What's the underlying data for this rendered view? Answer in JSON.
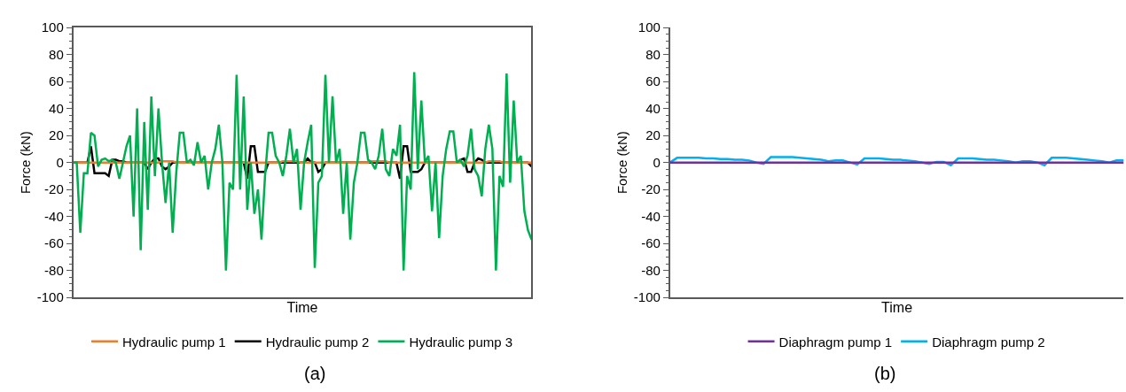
{
  "chart_data": [
    {
      "type": "line",
      "xlabel": "Time",
      "ylabel": "Force (kN)",
      "ylim": [
        -100,
        100
      ],
      "yticks": [
        -100,
        -80,
        -60,
        -40,
        -20,
        0,
        20,
        40,
        60,
        80,
        100
      ],
      "legend": "bottom",
      "marker": "none",
      "line_style": "solid",
      "annotations": [
        "(a)"
      ],
      "categories": [
        null,
        null,
        null,
        null,
        null,
        null,
        null,
        null,
        null,
        null,
        null,
        null,
        null,
        null,
        null,
        null,
        null,
        null,
        null,
        null,
        null,
        null,
        null,
        null,
        null,
        null,
        null,
        null,
        null,
        null,
        null,
        null,
        null,
        null,
        null,
        null,
        null,
        null,
        null,
        null,
        null,
        null,
        null,
        null,
        null,
        null,
        null,
        null,
        null,
        null,
        null,
        null,
        null,
        null,
        null,
        null,
        null,
        null,
        null,
        null,
        null,
        null,
        null,
        null,
        null,
        null,
        null,
        null,
        null,
        null,
        null,
        null,
        null,
        null,
        null,
        null,
        null,
        null,
        null,
        null,
        null,
        null,
        null,
        null,
        null,
        null,
        null,
        null,
        null,
        null,
        null,
        null,
        null,
        null,
        null,
        null,
        null,
        null,
        null,
        null,
        null,
        null,
        null,
        null,
        null,
        null,
        null,
        null,
        null,
        null,
        null,
        null,
        null,
        null,
        null,
        null,
        null,
        null,
        null,
        null,
        null,
        null,
        null,
        null,
        null,
        null,
        null,
        null,
        null,
        null
      ],
      "series": [
        {
          "name": "Hydraulic pump 1",
          "color": "#ed7d31",
          "values": [
            0,
            0,
            0,
            0,
            0,
            0,
            0,
            0,
            0,
            0,
            0,
            0,
            0,
            0,
            0,
            0,
            0,
            0,
            0,
            0,
            0,
            0,
            0,
            0,
            0,
            1,
            1,
            1,
            1,
            0,
            0,
            0,
            0,
            0,
            0,
            0,
            0,
            0,
            0,
            0,
            0,
            0,
            0,
            0,
            0,
            0,
            0,
            0,
            0,
            0,
            0,
            0,
            0,
            0,
            0,
            0,
            0,
            0,
            0,
            1,
            1,
            1,
            1,
            1,
            0,
            0,
            0,
            0,
            0,
            0,
            0,
            0,
            0,
            0,
            0,
            0,
            0,
            0,
            0,
            0,
            0,
            0,
            0,
            0,
            1,
            1,
            1,
            1,
            1,
            0,
            0,
            0,
            0,
            0,
            0,
            0,
            0,
            0,
            0,
            0,
            0,
            0,
            0,
            0,
            0,
            0,
            0,
            0,
            0,
            0,
            0,
            0,
            0,
            0,
            0,
            0,
            0,
            1,
            1,
            1,
            1,
            0,
            0,
            0,
            0,
            0,
            0,
            0,
            0,
            0
          ]
        },
        {
          "name": "Hydraulic pump 2",
          "color": "#000000",
          "values": [
            0,
            0,
            0,
            0,
            0,
            12,
            -8,
            -8,
            -8,
            -8,
            -10,
            2,
            2,
            1,
            1,
            0,
            0,
            0,
            0,
            0,
            0,
            -5,
            0,
            3,
            3,
            -3,
            -5,
            -3,
            0,
            0,
            0,
            0,
            0,
            0,
            0,
            0,
            0,
            0,
            0,
            0,
            0,
            0,
            0,
            0,
            0,
            0,
            0,
            0,
            0,
            -12,
            12,
            12,
            -7,
            -7,
            -7,
            0,
            0,
            0,
            0,
            0,
            0,
            0,
            0,
            0,
            0,
            0,
            3,
            0,
            0,
            -7,
            -5,
            0,
            0,
            0,
            0,
            0,
            0,
            0,
            0,
            0,
            0,
            0,
            0,
            0,
            0,
            0,
            0,
            0,
            0,
            0,
            0,
            0,
            -12,
            12,
            12,
            -7,
            -7,
            -7,
            -5,
            0,
            0,
            0,
            0,
            0,
            0,
            0,
            0,
            0,
            0,
            2,
            3,
            -7,
            -7,
            0,
            3,
            2,
            0,
            0,
            0,
            0,
            0,
            0,
            0,
            0,
            0,
            0,
            0,
            0,
            0,
            -3
          ]
        },
        {
          "name": "Hydraulic pump 3",
          "color": "#00b050",
          "values": [
            0,
            0,
            -52,
            -8,
            -8,
            22,
            20,
            -3,
            2,
            3,
            1,
            2,
            0,
            -12,
            0,
            12,
            20,
            -40,
            40,
            -65,
            30,
            -35,
            49,
            -10,
            40,
            0,
            -30,
            0,
            -52,
            -8,
            22,
            22,
            0,
            2,
            -2,
            15,
            0,
            5,
            -20,
            0,
            10,
            28,
            0,
            -80,
            -15,
            -20,
            65,
            -20,
            49,
            -35,
            0,
            -38,
            -20,
            -57,
            -10,
            22,
            22,
            5,
            0,
            -10,
            5,
            25,
            0,
            10,
            -35,
            0,
            15,
            28,
            -78,
            -15,
            -10,
            65,
            0,
            49,
            0,
            10,
            -38,
            0,
            -57,
            -15,
            0,
            22,
            22,
            2,
            0,
            -5,
            5,
            25,
            -5,
            -10,
            10,
            5,
            28,
            -80,
            -10,
            -20,
            67,
            -5,
            46,
            0,
            5,
            -36,
            0,
            -56,
            -10,
            10,
            23,
            23,
            0,
            2,
            -3,
            5,
            25,
            -5,
            -10,
            -25,
            10,
            28,
            10,
            -80,
            -10,
            -18,
            66,
            -15,
            46,
            0,
            5,
            -36,
            -50,
            -57
          ]
        }
      ]
    },
    {
      "type": "line",
      "xlabel": "Time",
      "ylabel": "Force (kN)",
      "ylim": [
        -100,
        100
      ],
      "yticks": [
        -100,
        -80,
        -60,
        -40,
        -20,
        0,
        20,
        40,
        60,
        80,
        100
      ],
      "legend": "bottom",
      "marker": "none",
      "line_style": "solid",
      "annotations": [
        "(b)"
      ],
      "categories": [
        null,
        null,
        null,
        null,
        null,
        null,
        null,
        null,
        null,
        null,
        null,
        null,
        null,
        null,
        null,
        null,
        null,
        null,
        null,
        null,
        null,
        null,
        null,
        null,
        null,
        null,
        null,
        null,
        null,
        null,
        null,
        null,
        null,
        null,
        null,
        null,
        null,
        null,
        null,
        null,
        null,
        null,
        null,
        null,
        null,
        null,
        null,
        null,
        null,
        null,
        null,
        null,
        null,
        null,
        null,
        null,
        null,
        null,
        null,
        null,
        null,
        null,
        null,
        null
      ],
      "series": [
        {
          "name": "Diaphragm pump 1",
          "color": "#7030a0",
          "values": [
            0,
            0,
            0,
            0,
            0,
            0,
            0,
            0,
            0,
            0,
            0,
            0,
            0,
            0,
            0,
            0,
            0,
            0,
            0,
            0,
            0,
            0,
            0,
            0,
            0,
            0,
            0,
            0,
            0,
            0,
            0,
            0,
            0,
            0,
            0,
            0,
            0,
            0,
            0,
            0,
            0,
            0,
            0,
            0,
            0,
            0,
            0,
            0,
            0,
            0,
            0,
            0,
            0,
            0,
            0,
            0,
            0,
            0,
            0,
            0,
            0,
            0,
            0,
            0
          ]
        },
        {
          "name": "Diaphragm pump 2",
          "color": "#00b0f0",
          "values": [
            0,
            3.5,
            3.5,
            3.5,
            3.5,
            3,
            3,
            2.5,
            2.5,
            2,
            2,
            1.5,
            0,
            -1,
            4,
            4,
            4,
            4,
            3.5,
            3,
            2.5,
            2,
            1,
            1.5,
            1.5,
            0,
            -1.5,
            3,
            3,
            3,
            2.5,
            2,
            2,
            1.5,
            1,
            0,
            -1,
            0.5,
            0.5,
            -2,
            3,
            3,
            3,
            2.5,
            2,
            2,
            1.5,
            1,
            0,
            1,
            1,
            0,
            -2,
            3.5,
            3.5,
            3.5,
            3,
            2.5,
            2,
            1.5,
            1,
            0,
            1.5,
            1.5
          ]
        }
      ]
    }
  ]
}
